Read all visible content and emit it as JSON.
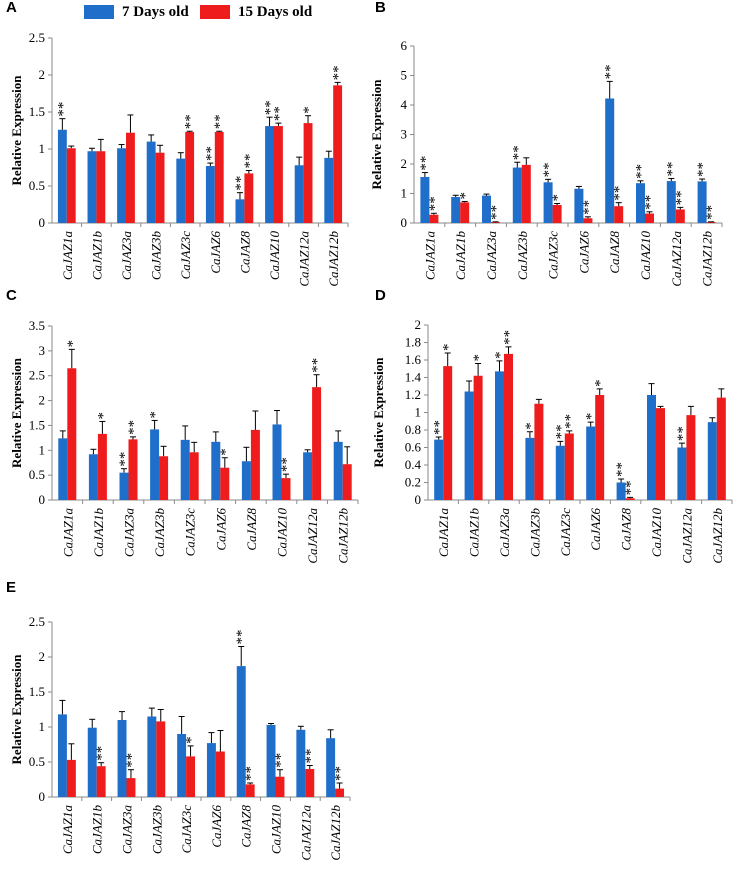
{
  "legend": {
    "items": [
      {
        "label": "7 Days old",
        "color": "#1f6ec9"
      },
      {
        "label": "15 Days old",
        "color": "#ee1c1c"
      }
    ]
  },
  "colors": {
    "series_a": "#1f6ec9",
    "series_b": "#ee1c1c",
    "axis": "#8a8a8a",
    "error": "#000000"
  },
  "chart_data": [
    {
      "panel": "A",
      "type": "bar",
      "ylabel": "Relative Expression",
      "xlabel": "",
      "title": "",
      "ylim": [
        0,
        2.5
      ],
      "ytick_values": [
        0,
        0.5,
        1,
        1.5,
        2,
        2.5
      ],
      "ytick_labels": [
        "0",
        "0.5",
        "1",
        "1.5",
        "2",
        "2.5"
      ],
      "categories": [
        "CaJAZ1a",
        "CaJAZ1b",
        "CaJAZ3a",
        "CaJAZ3b",
        "CaJAZ3c",
        "CaJAZ6",
        "CaJAZ8",
        "CaJAZ10",
        "CaJAZ12a",
        "CaJAZ12b"
      ],
      "series": [
        {
          "name": "7 Days old",
          "values": [
            1.26,
            0.97,
            1.01,
            1.1,
            0.87,
            0.77,
            0.32,
            1.31,
            0.78,
            0.88
          ],
          "errors": [
            0.15,
            0.04,
            0.05,
            0.09,
            0.08,
            0.04,
            0.09,
            0.12,
            0.11,
            0.09
          ],
          "marks": [
            "**",
            "",
            "",
            "",
            "",
            "**",
            "**",
            "**",
            "",
            ""
          ]
        },
        {
          "name": "15 Days old",
          "values": [
            1.01,
            0.97,
            1.22,
            0.95,
            1.23,
            1.23,
            0.67,
            1.31,
            1.35,
            1.86
          ],
          "errors": [
            0.03,
            0.16,
            0.24,
            0.1,
            0.01,
            0.01,
            0.04,
            0.04,
            0.1,
            0.04
          ],
          "marks": [
            "",
            "",
            "",
            "",
            "**",
            "**",
            "**",
            "**",
            "*",
            "**"
          ]
        }
      ]
    },
    {
      "panel": "B",
      "type": "bar",
      "ylabel": "Relative Expression",
      "xlabel": "",
      "title": "",
      "ylim": [
        0,
        6
      ],
      "ytick_values": [
        0,
        1,
        2,
        3,
        4,
        5,
        6
      ],
      "ytick_labels": [
        "0",
        "1",
        "2",
        "3",
        "4",
        "5",
        "6"
      ],
      "categories": [
        "CaJAZ1a",
        "CaJAZ1b",
        "CaJAZ3a",
        "CaJAZ3b",
        "CaJAZ3c",
        "CaJAZ6",
        "CaJAZ8",
        "CaJAZ10",
        "CaJAZ12a",
        "CaJAZ12b"
      ],
      "series": [
        {
          "name": "7 Days old",
          "values": [
            1.56,
            0.88,
            0.93,
            1.88,
            1.38,
            1.16,
            4.22,
            1.35,
            1.42,
            1.41
          ],
          "errors": [
            0.15,
            0.06,
            0.05,
            0.18,
            0.1,
            0.08,
            0.58,
            0.08,
            0.09,
            0.08
          ],
          "marks": [
            "**",
            "",
            "",
            "**",
            "**",
            "",
            "**",
            "**",
            "**",
            "**"
          ]
        },
        {
          "name": "15 Days old",
          "values": [
            0.28,
            0.7,
            0.03,
            1.97,
            0.61,
            0.16,
            0.57,
            0.32,
            0.46,
            0.03
          ],
          "errors": [
            0.05,
            0.03,
            0.01,
            0.24,
            0.05,
            0.05,
            0.12,
            0.06,
            0.07,
            0.01
          ],
          "marks": [
            "**",
            "*",
            "**",
            "",
            "*",
            "**",
            "**",
            "**",
            "**",
            "**"
          ]
        }
      ]
    },
    {
      "panel": "C",
      "type": "bar",
      "ylabel": "Relative Expression",
      "xlabel": "",
      "title": "",
      "ylim": [
        0,
        3.5
      ],
      "ytick_values": [
        0,
        0.5,
        1,
        1.5,
        2,
        2.5,
        3,
        3.5
      ],
      "ytick_labels": [
        "0",
        "0.5",
        "1",
        "1.5",
        "2",
        "2.5",
        "3",
        "3.5"
      ],
      "categories": [
        "CaJAZ1a",
        "CaJAZ1b",
        "CaJAZ3a",
        "CaJAZ3b",
        "CaJAZ3c",
        "CaJAZ6",
        "CaJAZ8",
        "CaJAZ10",
        "CaJAZ12a",
        "CaJAZ12b"
      ],
      "series": [
        {
          "name": "7 Days old",
          "values": [
            1.24,
            0.92,
            0.55,
            1.42,
            1.21,
            1.17,
            0.78,
            1.52,
            0.96,
            1.17
          ],
          "errors": [
            0.15,
            0.1,
            0.08,
            0.18,
            0.28,
            0.2,
            0.28,
            0.28,
            0.05,
            0.22
          ],
          "marks": [
            "",
            "",
            "**",
            "*",
            "",
            "",
            "",
            "",
            "",
            ""
          ]
        },
        {
          "name": "15 Days old",
          "values": [
            2.65,
            1.33,
            1.22,
            0.88,
            0.96,
            0.65,
            1.41,
            0.44,
            2.27,
            0.72
          ],
          "errors": [
            0.38,
            0.25,
            0.05,
            0.2,
            0.2,
            0.2,
            0.38,
            0.08,
            0.25,
            0.35
          ],
          "marks": [
            "*",
            "*",
            "**",
            "",
            "",
            "*",
            "",
            "**",
            "**",
            ""
          ]
        }
      ]
    },
    {
      "panel": "D",
      "type": "bar",
      "ylabel": "Relative Expression",
      "xlabel": "",
      "title": "",
      "ylim": [
        0,
        2
      ],
      "ytick_values": [
        0,
        0.2,
        0.4,
        0.6,
        0.8,
        1,
        1.2,
        1.4,
        1.6,
        1.8,
        2
      ],
      "ytick_labels": [
        "0",
        "0.2",
        "0.4",
        "0.6",
        "0.8",
        "1",
        "1.2",
        "1.4",
        "1.6",
        "1.8",
        "2"
      ],
      "categories": [
        "CaJAZ1a",
        "CaJAZ1b",
        "CaJAZ3a",
        "CaJAZ3b",
        "CaJAZ3c",
        "CaJAZ6",
        "CaJAZ8",
        "CaJAZ10",
        "CaJAZ12a",
        "CaJAZ12b"
      ],
      "series": [
        {
          "name": "7 Days old",
          "values": [
            0.69,
            1.24,
            1.47,
            0.71,
            0.62,
            0.84,
            0.2,
            1.2,
            0.6,
            0.89
          ],
          "errors": [
            0.03,
            0.12,
            0.12,
            0.07,
            0.05,
            0.05,
            0.04,
            0.13,
            0.05,
            0.05
          ],
          "marks": [
            "**",
            "",
            "*",
            "*",
            "**",
            "*",
            "**",
            "",
            "**",
            ""
          ]
        },
        {
          "name": "15 Days old",
          "values": [
            1.53,
            1.42,
            1.67,
            1.1,
            0.76,
            1.2,
            0.02,
            1.05,
            0.97,
            1.17
          ],
          "errors": [
            0.15,
            0.14,
            0.08,
            0.05,
            0.03,
            0.07,
            0.01,
            0.02,
            0.1,
            0.1
          ],
          "marks": [
            "*",
            "*",
            "**",
            "",
            "**",
            "*",
            "**",
            "",
            "",
            ""
          ]
        }
      ]
    },
    {
      "panel": "E",
      "type": "bar",
      "ylabel": "Relative Expression",
      "xlabel": "",
      "title": "",
      "ylim": [
        0,
        2.5
      ],
      "ytick_values": [
        0,
        0.5,
        1,
        1.5,
        2,
        2.5
      ],
      "ytick_labels": [
        "0",
        "0.5",
        "1",
        "1.5",
        "2",
        "2.5"
      ],
      "categories": [
        "CaJAZ1a",
        "CaJAZ1b",
        "CaJAZ3a",
        "CaJAZ3b",
        "CaJAZ3c",
        "CaJAZ6",
        "CaJAZ8",
        "CaJAZ10",
        "CaJAZ12a",
        "CaJAZ12b"
      ],
      "series": [
        {
          "name": "7 Days old",
          "values": [
            1.18,
            0.99,
            1.1,
            1.15,
            0.9,
            0.77,
            1.87,
            1.03,
            0.96,
            0.84
          ],
          "errors": [
            0.2,
            0.12,
            0.12,
            0.12,
            0.25,
            0.15,
            0.28,
            0.02,
            0.05,
            0.12
          ],
          "marks": [
            "",
            "",
            "",
            "",
            "",
            "",
            "**",
            "",
            "",
            ""
          ]
        },
        {
          "name": "15 Days old",
          "values": [
            0.53,
            0.44,
            0.27,
            1.08,
            0.58,
            0.65,
            0.18,
            0.29,
            0.4,
            0.12
          ],
          "errors": [
            0.23,
            0.05,
            0.12,
            0.17,
            0.15,
            0.3,
            0.02,
            0.1,
            0.05,
            0.08
          ],
          "marks": [
            "",
            "**",
            "**",
            "",
            "*",
            "",
            "**",
            "**",
            "**",
            "**"
          ]
        }
      ]
    }
  ]
}
